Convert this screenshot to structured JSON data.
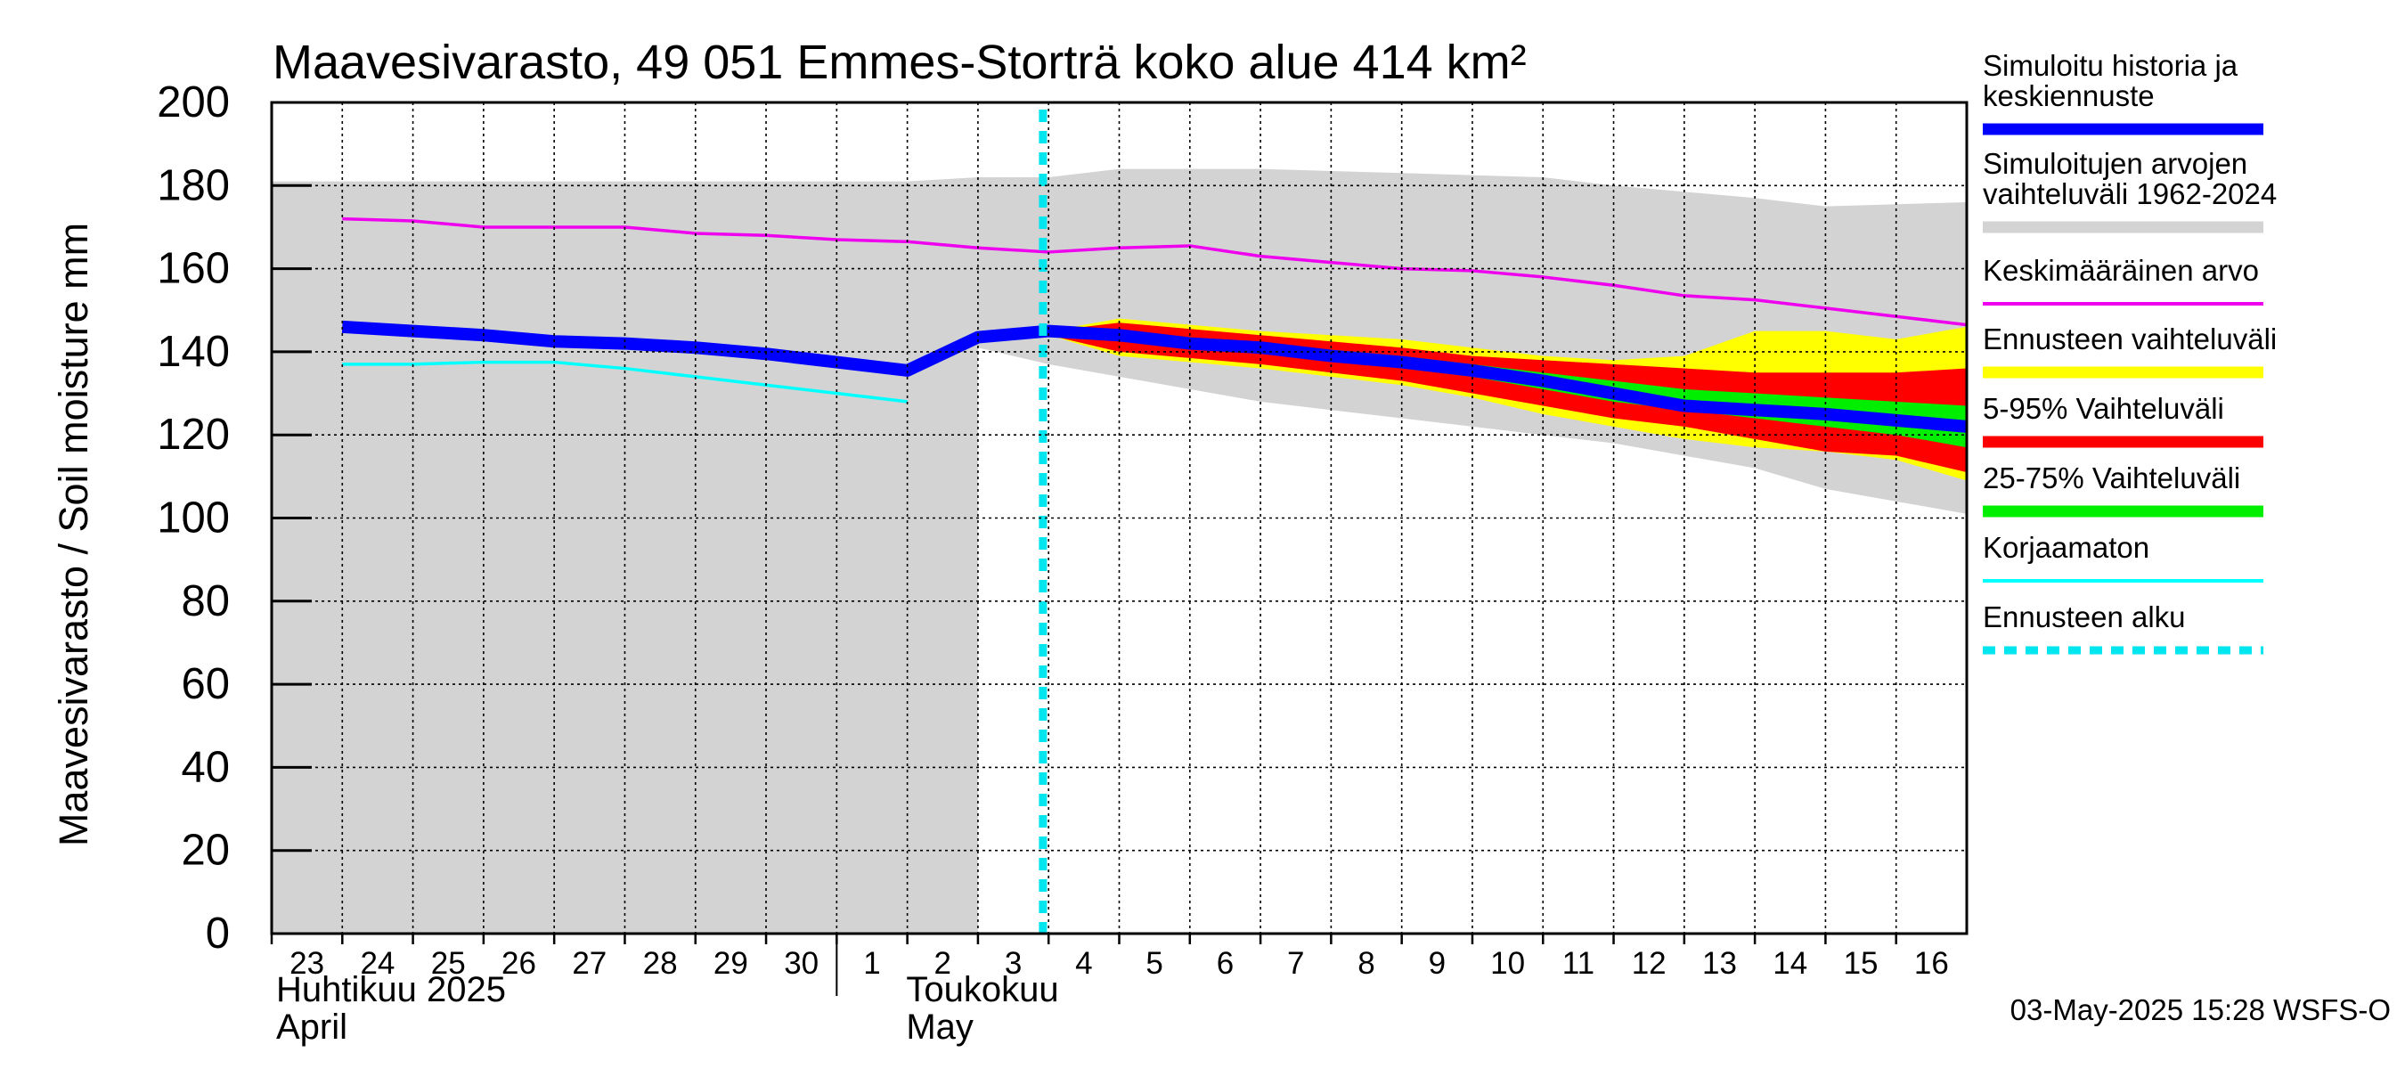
{
  "chart_data": {
    "type": "area",
    "title": "Maavesivarasto, 49 051 Emmes-Storträ koko alue 414 km²",
    "ylabel": "Maavesivarasto / Soil moisture   mm",
    "ylim": [
      0,
      200
    ],
    "yticks": [
      0,
      20,
      40,
      60,
      80,
      100,
      120,
      140,
      160,
      180,
      200
    ],
    "grid": true,
    "legend_position": "right",
    "x_start": "2025-04-23",
    "x_end": "2025-05-16",
    "x_tick_labels": [
      "23",
      "24",
      "25",
      "26",
      "27",
      "28",
      "29",
      "30",
      "1",
      "2",
      "3",
      "4",
      "5",
      "6",
      "7",
      "8",
      "9",
      "10",
      "11",
      "12",
      "13",
      "14",
      "15",
      "16"
    ],
    "month_labels": [
      {
        "line1": "Huhtikuu  2025",
        "line2": "April",
        "date": "2025-04-23"
      },
      {
        "line1": "Toukokuu",
        "line2": "May",
        "date": "2025-05-01"
      }
    ],
    "forecast_start": "2025-05-03",
    "footer": "03-May-2025 15:28 WSFS-O",
    "series": [
      {
        "key": "history_range",
        "name": "Simuloitujen arvojen vaihteluväli 1962-2024",
        "color": "#d3d3d3",
        "x": [
          "2025-04-23",
          "2025-04-27",
          "2025-05-01",
          "2025-05-02",
          "2025-05-03",
          "2025-05-04",
          "2025-05-06",
          "2025-05-08",
          "2025-05-10",
          "2025-05-11",
          "2025-05-13",
          "2025-05-14",
          "2025-05-16"
        ],
        "upper": [
          181,
          181,
          181,
          182,
          182,
          184,
          184,
          183,
          182,
          180,
          177,
          175,
          176
        ],
        "lower": [
          0,
          0,
          0,
          0,
          0,
          0,
          0,
          0,
          0,
          0,
          0,
          0,
          0
        ],
        "x_lower_edge": [
          "2025-05-02",
          "2025-05-03",
          "2025-05-04",
          "2025-05-06",
          "2025-05-08",
          "2025-05-10",
          "2025-05-11",
          "2025-05-13",
          "2025-05-14",
          "2025-05-16"
        ],
        "lower_edge": [
          141,
          137,
          134,
          128,
          124,
          120,
          118,
          112,
          107,
          101
        ]
      },
      {
        "key": "forecast_range",
        "name": "Ennusteen vaihteluväli",
        "color": "#ffff00",
        "x": [
          "2025-05-03",
          "2025-05-04",
          "2025-05-06",
          "2025-05-08",
          "2025-05-09",
          "2025-05-10",
          "2025-05-11",
          "2025-05-12",
          "2025-05-13",
          "2025-05-14",
          "2025-05-15",
          "2025-05-16"
        ],
        "upper": [
          145,
          148,
          145,
          143,
          141,
          139,
          138,
          139,
          145,
          145,
          143,
          146
        ],
        "lower": [
          144,
          139,
          136,
          132,
          129,
          125,
          122,
          119,
          117,
          116,
          114,
          109
        ]
      },
      {
        "key": "p5_95",
        "name": "5-95% Vaihteluväli",
        "color": "#ff0000",
        "x": [
          "2025-05-03",
          "2025-05-04",
          "2025-05-06",
          "2025-05-08",
          "2025-05-09",
          "2025-05-10",
          "2025-05-11",
          "2025-05-12",
          "2025-05-13",
          "2025-05-14",
          "2025-05-15",
          "2025-05-16"
        ],
        "upper": [
          145,
          147,
          144,
          141,
          139,
          138,
          137,
          136,
          135,
          135,
          135,
          136
        ],
        "lower": [
          144,
          140,
          137,
          133,
          130,
          127,
          124,
          122,
          119,
          116,
          115,
          111
        ]
      },
      {
        "key": "p25_75",
        "name": "25-75% Vaihteluväli",
        "color": "#00ee00",
        "x": [
          "2025-05-03",
          "2025-05-04",
          "2025-05-06",
          "2025-05-08",
          "2025-05-09",
          "2025-05-10",
          "2025-05-11",
          "2025-05-12",
          "2025-05-13",
          "2025-05-14",
          "2025-05-15",
          "2025-05-16"
        ],
        "upper": [
          145,
          145,
          142,
          139,
          137,
          135,
          133,
          131,
          130,
          129,
          128,
          127
        ],
        "lower": [
          144,
          143,
          140,
          136,
          134,
          131,
          128,
          126,
          124,
          122,
          120,
          117
        ]
      },
      {
        "key": "mean",
        "name": "Keskimääräinen arvo",
        "color": "#ee00ee",
        "x": [
          "2025-04-23",
          "2025-04-24",
          "2025-04-25",
          "2025-04-26",
          "2025-04-27",
          "2025-04-28",
          "2025-04-29",
          "2025-04-30",
          "2025-05-01",
          "2025-05-02",
          "2025-05-03",
          "2025-05-04",
          "2025-05-05",
          "2025-05-06",
          "2025-05-07",
          "2025-05-08",
          "2025-05-09",
          "2025-05-10",
          "2025-05-11",
          "2025-05-12",
          "2025-05-13",
          "2025-05-14",
          "2025-05-15",
          "2025-05-16"
        ],
        "y": [
          172,
          171.5,
          170,
          170,
          170,
          168.5,
          168,
          167,
          166.5,
          165,
          164,
          165,
          165.5,
          163,
          161.5,
          160,
          159.5,
          158,
          156,
          153.5,
          152.5,
          150.5,
          148.5,
          146.5
        ]
      },
      {
        "key": "uncorrected",
        "name": "Korjaamaton",
        "color": "#00ffff",
        "x": [
          "2025-04-23",
          "2025-04-24",
          "2025-04-25",
          "2025-04-26",
          "2025-04-27",
          "2025-04-28",
          "2025-04-29",
          "2025-04-30",
          "2025-05-01"
        ],
        "y": [
          137,
          137,
          137.5,
          137.5,
          136,
          134,
          132,
          130,
          128
        ]
      },
      {
        "key": "simulated",
        "name": "Simuloitu historia ja keskiennuste",
        "color": "#0000ff",
        "x": [
          "2025-04-23",
          "2025-04-24",
          "2025-04-25",
          "2025-04-26",
          "2025-04-27",
          "2025-04-28",
          "2025-04-29",
          "2025-04-30",
          "2025-05-01",
          "2025-05-02",
          "2025-05-03",
          "2025-05-04",
          "2025-05-05",
          "2025-05-06",
          "2025-05-07",
          "2025-05-08",
          "2025-05-09",
          "2025-05-10",
          "2025-05-11",
          "2025-05-12",
          "2025-05-13",
          "2025-05-14",
          "2025-05-15",
          "2025-05-16"
        ],
        "y": [
          146,
          145,
          144,
          142.5,
          142,
          141,
          139.5,
          137.5,
          135.5,
          143.5,
          145,
          144,
          142,
          141,
          139,
          137.5,
          135.5,
          133,
          130,
          127,
          126,
          125,
          123.5,
          122
        ]
      }
    ],
    "legend": [
      {
        "label": "Simuloitu historia ja keskiennuste",
        "color": "#0000ff",
        "style": "thick"
      },
      {
        "label": "Simuloitujen arvojen vaihteluväli 1962-2024",
        "color": "#d3d3d3",
        "style": "thick"
      },
      {
        "label": "Keskimääräinen arvo",
        "color": "#ee00ee",
        "style": "thin"
      },
      {
        "label": "Ennusteen vaihteluväli",
        "color": "#ffff00",
        "style": "thick"
      },
      {
        "label": "5-95% Vaihteluväli",
        "color": "#ff0000",
        "style": "thick"
      },
      {
        "label": "25-75% Vaihteluväli",
        "color": "#00ee00",
        "style": "thick"
      },
      {
        "label": "Korjaamaton",
        "color": "#00ffff",
        "style": "thin"
      },
      {
        "label": "Ennusteen alku",
        "color": "#00e5ee",
        "style": "dashed"
      }
    ]
  }
}
